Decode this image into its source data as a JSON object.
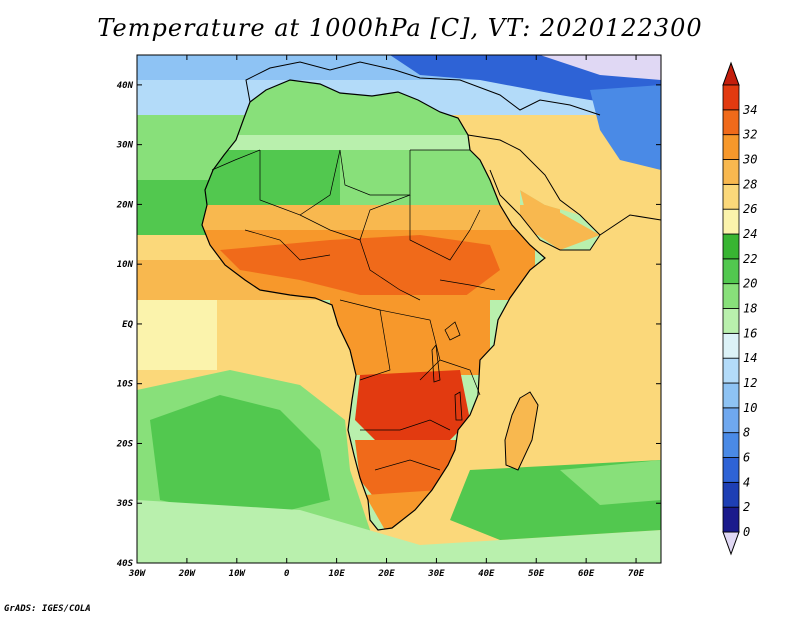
{
  "title": "Temperature at 1000hPa [C], VT: 2020122300",
  "credit": "GrADS: IGES/COLA",
  "map": {
    "lon_range": [
      -30,
      75
    ],
    "lat_range": [
      -40,
      45
    ],
    "lat_ticks": [
      "40N",
      "30N",
      "20N",
      "10N",
      "EQ",
      "10S",
      "20S",
      "30S",
      "40S"
    ],
    "lon_ticks": [
      "30W",
      "20W",
      "10W",
      "0",
      "10E",
      "20E",
      "30E",
      "40E",
      "50E",
      "60E",
      "70E"
    ]
  },
  "colorbar": {
    "levels": [
      "0",
      "2",
      "4",
      "6",
      "8",
      "10",
      "12",
      "14",
      "16",
      "18",
      "20",
      "22",
      "24",
      "26",
      "28",
      "30",
      "32",
      "34"
    ],
    "colors": [
      "#1a1a8c",
      "#1e3fb4",
      "#2e63d6",
      "#4a8ae6",
      "#6fa8ef",
      "#8ec3f4",
      "#b3dbf9",
      "#dcf2f7",
      "#b9f0ad",
      "#88e07a",
      "#52c84f",
      "#38b532",
      "#fbf3ac",
      "#fbd87a",
      "#f8b84f",
      "#f7982b",
      "#f06a1a",
      "#e23a10",
      "#c41e0c"
    ],
    "under_color": "#e0d8f4",
    "over_color": "#c41e0c"
  }
}
